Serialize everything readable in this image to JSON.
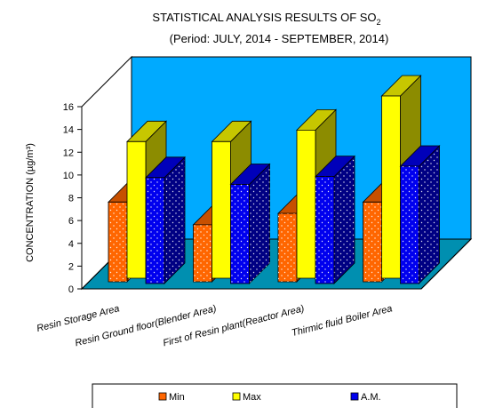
{
  "chart_data": {
    "type": "bar",
    "title": "STATISTICAL ANALYSIS RESULTS OF SO",
    "title_subscript": "2",
    "subtitle": "(Period: JULY, 2014 - SEPTEMBER, 2014)",
    "ylabel": "CONCENTRATION (µg/m³)",
    "xlabel": "",
    "ylim": [
      0,
      16
    ],
    "yticks": [
      "0",
      "2",
      "4",
      "6",
      "8",
      "10",
      "12",
      "14",
      "16"
    ],
    "categories": [
      "Resin Storage Area",
      "Resin Ground floor(Blender Area)",
      "First of Resin plant(Reactor Area)",
      "Thirmic fluid Boiler Area"
    ],
    "series": [
      {
        "name": "Min",
        "values": [
          7,
          5,
          6,
          7
        ],
        "color": "#ff6600"
      },
      {
        "name": "Max",
        "values": [
          12,
          12,
          13,
          16
        ],
        "color": "#ffff00"
      },
      {
        "name": "A.M.",
        "values": [
          9.3,
          8.7,
          9.4,
          10.3
        ],
        "color": "#0000ee"
      }
    ],
    "grid": false,
    "legend_position": "bottom",
    "wall_color": "#00aaff",
    "floor_color": "#008fb0"
  }
}
